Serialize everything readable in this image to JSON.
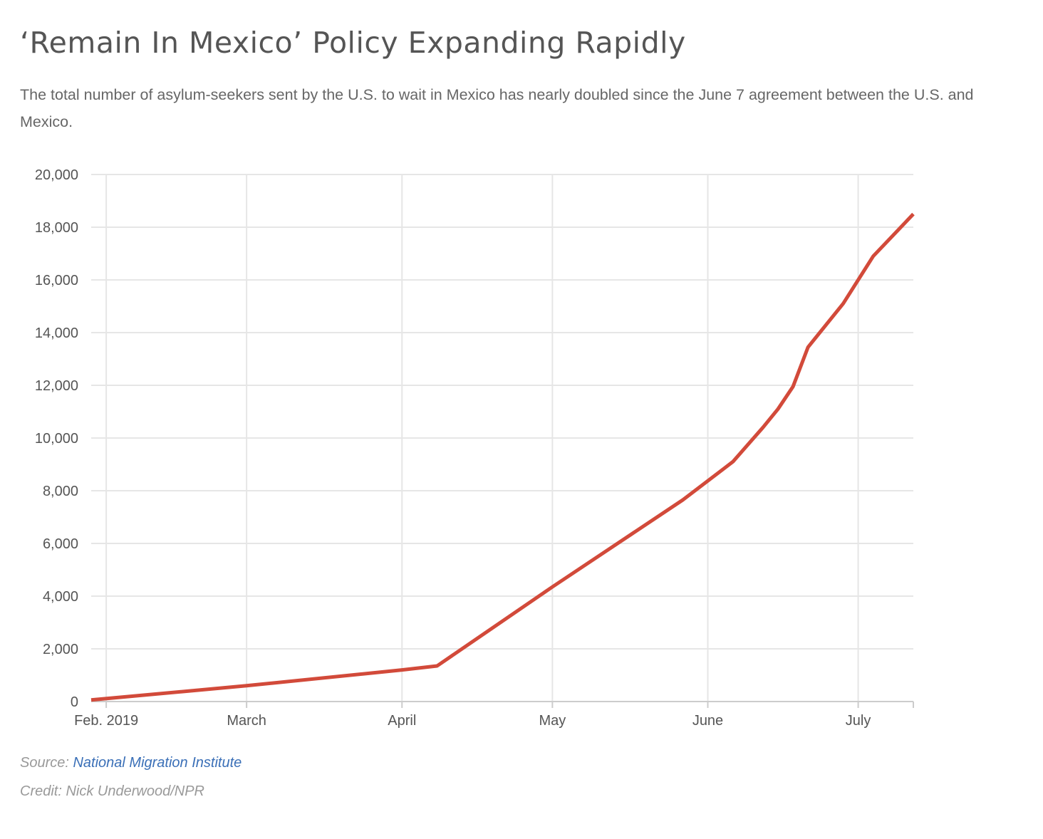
{
  "header": {
    "title": "‘Remain In Mexico’ Policy Expanding Rapidly",
    "subtitle": "The total number of asylum-seekers sent by the U.S. to wait in Mexico has nearly doubled since the June 7 agreement between the U.S. and Mexico."
  },
  "footer": {
    "source_prefix": "Source: ",
    "source_link": "National Migration Institute",
    "credit": "Credit: Nick Underwood/NPR"
  },
  "colors": {
    "line": "#d24a3a",
    "grid": "#e6e6e6",
    "axis": "#cccccc",
    "link": "#3a6fb7"
  },
  "chart_data": {
    "type": "line",
    "title": "",
    "xlabel": "",
    "ylabel": "",
    "xlim": [
      "2019-01-29",
      "2019-07-12"
    ],
    "ylim": [
      0,
      20000
    ],
    "y_ticks": [
      0,
      2000,
      4000,
      6000,
      8000,
      10000,
      12000,
      14000,
      16000,
      18000,
      20000
    ],
    "y_tick_labels": [
      "0",
      "2,000",
      "4,000",
      "6,000",
      "8,000",
      "10,000",
      "12,000",
      "14,000",
      "16,000",
      "18,000",
      "20,000"
    ],
    "x_ticks": [
      "2019-02-01",
      "2019-03-01",
      "2019-04-01",
      "2019-05-01",
      "2019-06-01",
      "2019-07-01"
    ],
    "x_tick_labels": [
      "Feb. 2019",
      "March",
      "April",
      "May",
      "June",
      "July"
    ],
    "grid": true,
    "legend": "none",
    "series": [
      {
        "x": [
          "2019-01-29",
          "2019-03-01",
          "2019-04-01",
          "2019-04-08",
          "2019-05-01",
          "2019-05-27",
          "2019-06-06",
          "2019-06-12",
          "2019-06-15",
          "2019-06-18",
          "2019-06-21",
          "2019-06-28",
          "2019-07-04",
          "2019-07-12"
        ],
        "y": [
          60,
          600,
          1200,
          1350,
          4350,
          7650,
          9100,
          10400,
          11100,
          11950,
          13450,
          15100,
          16900,
          18500
        ]
      }
    ]
  }
}
